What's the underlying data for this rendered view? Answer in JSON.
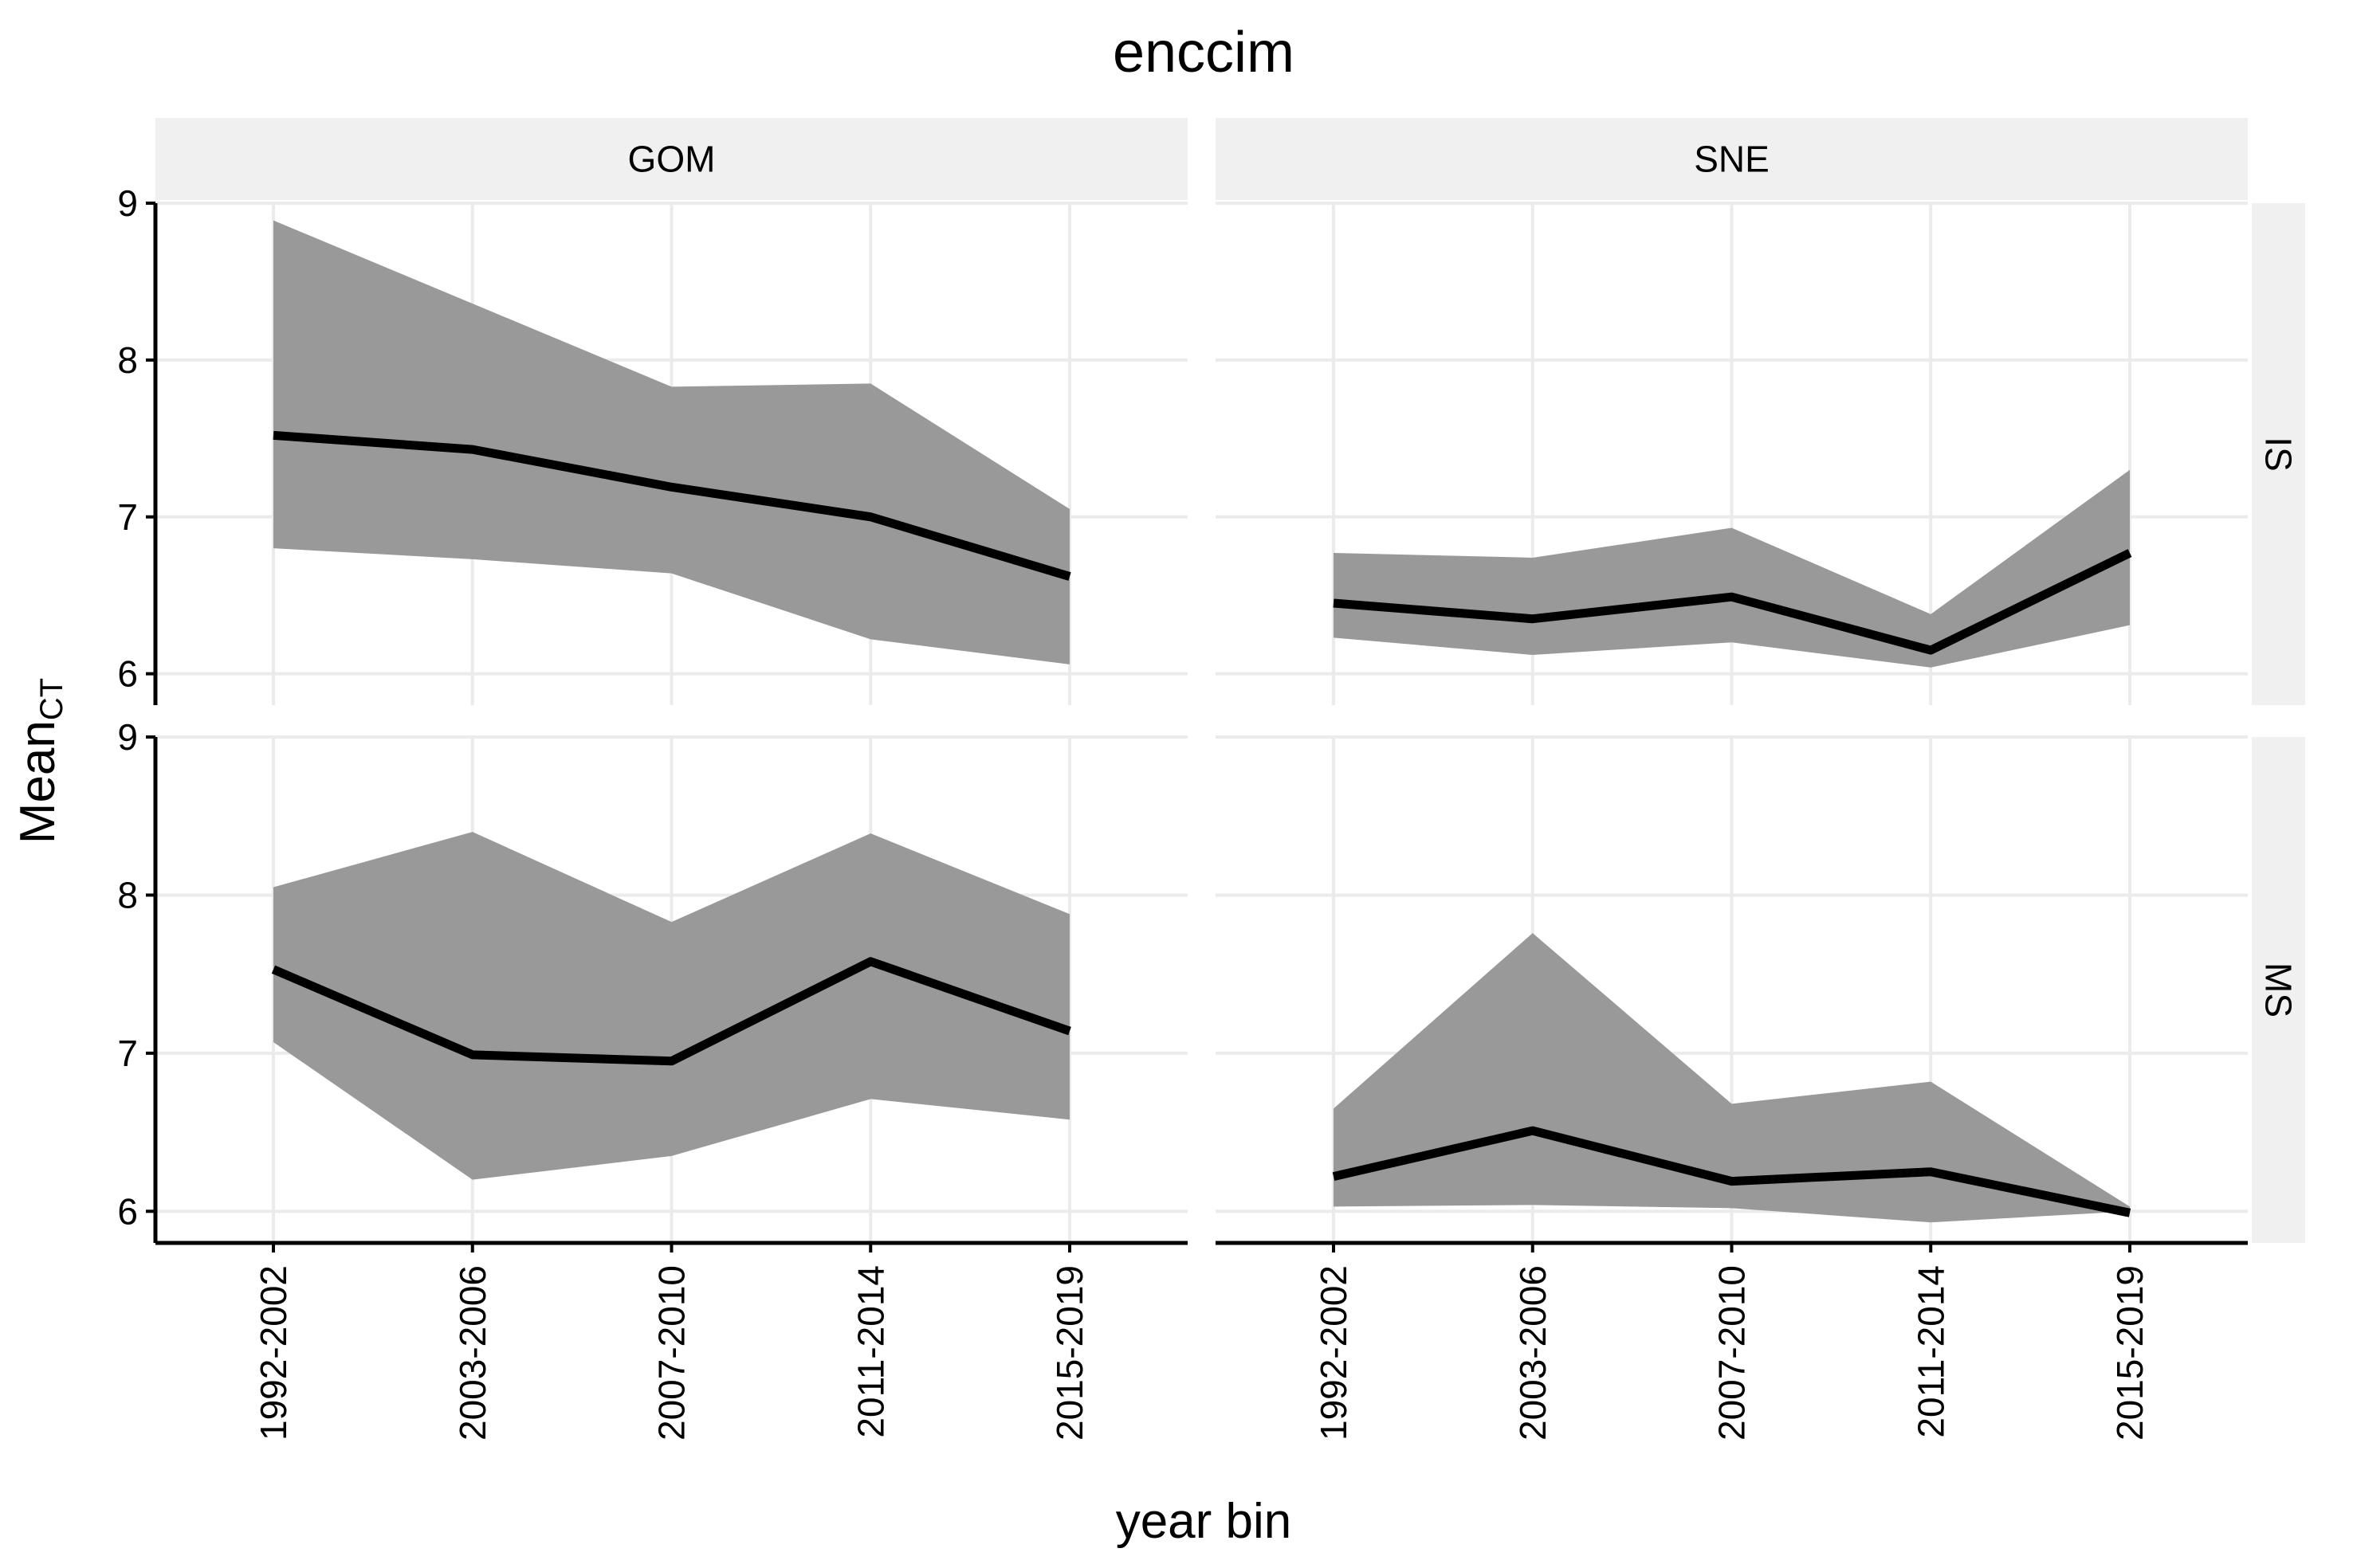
{
  "chart_data": {
    "type": "line",
    "title": "enccim",
    "xlabel": "year bin",
    "ylabel_main": "Mean",
    "ylabel_subscript": "CT",
    "ylim": [
      5.8,
      9.0
    ],
    "yticks": [
      6,
      7,
      8,
      9
    ],
    "categories": [
      "1992-2002",
      "2003-2006",
      "2007-2010",
      "2011-2014",
      "2015-2019"
    ],
    "columns": [
      "GOM",
      "SNE"
    ],
    "rows": [
      "IS",
      "MS"
    ],
    "colors": {
      "ribbon": "#999999",
      "line": "#000000",
      "strip": "#f0f0f0",
      "grid": "#ebebeb"
    },
    "panels": [
      {
        "column": "GOM",
        "row": "IS",
        "mean": [
          7.52,
          7.43,
          7.19,
          7.0,
          6.62
        ],
        "lower": [
          6.8,
          6.73,
          6.64,
          6.22,
          6.06
        ],
        "upper": [
          8.89,
          8.36,
          7.83,
          7.85,
          7.05
        ]
      },
      {
        "column": "SNE",
        "row": "IS",
        "mean": [
          6.45,
          6.35,
          6.49,
          6.15,
          6.77
        ],
        "lower": [
          6.23,
          6.12,
          6.2,
          6.04,
          6.31
        ],
        "upper": [
          6.77,
          6.74,
          6.93,
          6.38,
          7.3
        ]
      },
      {
        "column": "GOM",
        "row": "MS",
        "mean": [
          7.53,
          6.99,
          6.95,
          7.58,
          7.14
        ],
        "lower": [
          7.07,
          6.2,
          6.35,
          6.71,
          6.58
        ],
        "upper": [
          8.05,
          8.4,
          7.83,
          8.39,
          7.88
        ]
      },
      {
        "column": "SNE",
        "row": "MS",
        "mean": [
          6.22,
          6.51,
          6.19,
          6.25,
          5.99
        ],
        "lower": [
          6.03,
          6.04,
          6.02,
          5.93,
          6.0
        ],
        "upper": [
          6.65,
          7.76,
          6.68,
          6.82,
          6.03
        ]
      }
    ]
  }
}
